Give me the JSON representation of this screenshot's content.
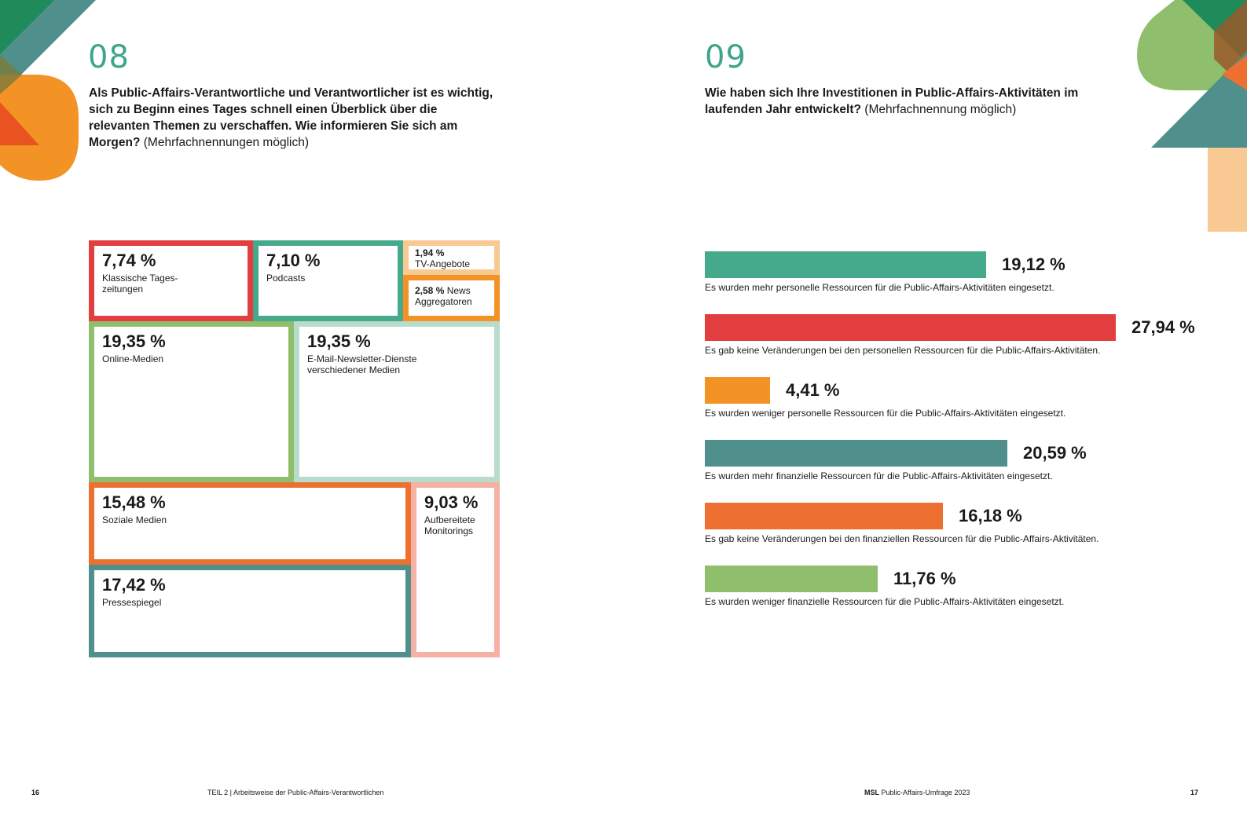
{
  "colors": {
    "teal": "#45aa8c",
    "red": "#e23e3f",
    "orange": "#f39325",
    "dark_teal": "#4f8f8c",
    "dark_orange": "#ee7030",
    "green": "#8fbe6c",
    "light_orange": "#f8c993",
    "light_green_border": "#b7dcca",
    "salmon": "#f4b1a4"
  },
  "left": {
    "number": "08",
    "question_bold": "Als Public-Affairs-Verantwortliche und Verantwortlicher ist es wichtig, sich zu Beginn eines Tages schnell einen Überblick über die relevanten Themen zu verschaffen. Wie informieren Sie sich am Morgen?",
    "question_note": "(Mehrfachnennungen möglich)"
  },
  "right": {
    "number": "09",
    "question_bold": "Wie haben sich Ihre Investitionen in Public-Affairs-Aktivitäten im laufenden Jahr entwickelt?",
    "question_note": "(Mehrfachnennung möglich)"
  },
  "chart_data": [
    {
      "type": "treemap",
      "unit": "%",
      "items": [
        {
          "label": "Klassische Tages- zeitungen",
          "value": 7.74,
          "display": "7,74 %",
          "color": "#e23e3f"
        },
        {
          "label": "Podcasts",
          "value": 7.1,
          "display": "7,10 %",
          "color": "#45aa8c"
        },
        {
          "label": "TV-Angebote",
          "value": 1.94,
          "display": "1,94 %",
          "color": "#f8c993"
        },
        {
          "label": "News Aggregatoren",
          "value": 2.58,
          "display": "2,58 %",
          "color": "#f39325"
        },
        {
          "label": "Online-Medien",
          "value": 19.35,
          "display": "19,35 %",
          "color": "#8fbe6c"
        },
        {
          "label": "E-Mail-Newsletter-Dienste verschiedener Medien",
          "value": 19.35,
          "display": "19,35 %",
          "color": "#b7dcca"
        },
        {
          "label": "Soziale Medien",
          "value": 15.48,
          "display": "15,48 %",
          "color": "#ee7030"
        },
        {
          "label": "Aufbereitete Monitorings",
          "value": 9.03,
          "display": "9,03 %",
          "color": "#f4b1a4"
        },
        {
          "label": "Pressespiegel",
          "value": 17.42,
          "display": "17,42 %",
          "color": "#4f8f8c"
        }
      ]
    },
    {
      "type": "bar",
      "orientation": "horizontal",
      "unit": "%",
      "xlim": [
        0,
        27.94
      ],
      "bars": [
        {
          "label": "Es wurden mehr personelle Ressourcen für die Public-Affairs-Aktivitäten eingesetzt.",
          "value": 19.12,
          "display": "19,12 %",
          "color": "#45aa8c"
        },
        {
          "label": "Es gab keine Veränderungen bei den personellen Ressourcen für die Public-Affairs-Aktivitäten.",
          "value": 27.94,
          "display": "27,94 %",
          "color": "#e23e3f"
        },
        {
          "label": "Es wurden weniger personelle Ressourcen für die Public-Affairs-Aktivitäten eingesetzt.",
          "value": 4.41,
          "display": "4,41 %",
          "color": "#f39325"
        },
        {
          "label": "Es wurden mehr finanzielle Ressourcen für die Public-Affairs-Aktivitäten eingesetzt.",
          "value": 20.59,
          "display": "20,59 %",
          "color": "#4f8f8c"
        },
        {
          "label": "Es gab keine Veränderungen bei den finanziellen Ressourcen für die Public-Affairs-Aktivitäten.",
          "value": 16.18,
          "display": "16,18 %",
          "color": "#ee7030"
        },
        {
          "label": "Es wurden weniger finanzielle Ressourcen für die Public-Affairs-Aktivitäten eingesetzt.",
          "value": 11.76,
          "display": "11,76 %",
          "color": "#8fbe6c"
        }
      ]
    }
  ],
  "footer": {
    "page_left": "16",
    "section": "TEIL 2 | Arbeitsweise der Public-Affairs-Verantwortlichen",
    "brand": "MSL",
    "publication": "Public-Affairs-Umfrage 2023",
    "page_right": "17"
  }
}
